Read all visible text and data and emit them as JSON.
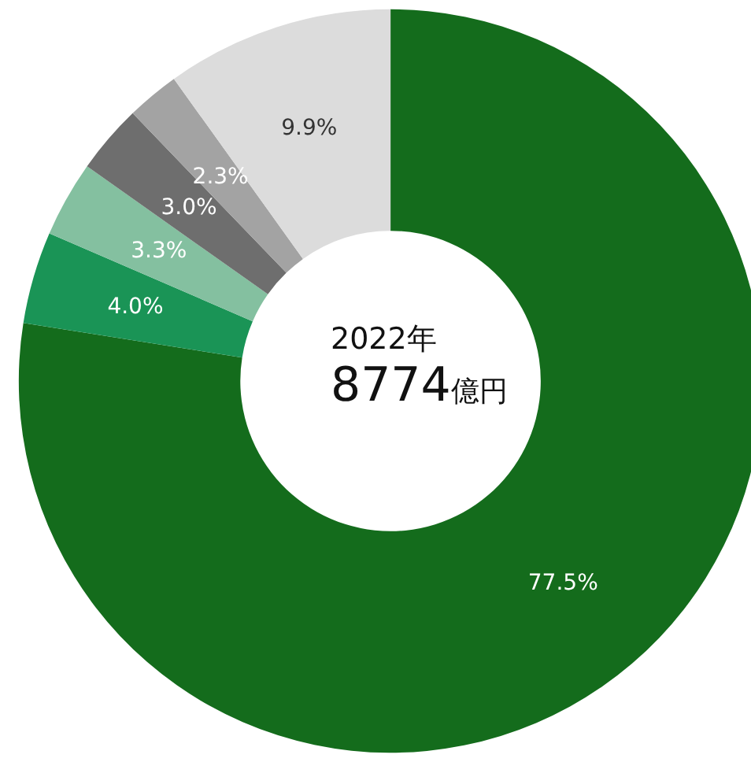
{
  "chart_data": {
    "type": "donut",
    "categories": [
      null,
      null,
      null,
      null,
      null,
      null
    ],
    "values": [
      77.5,
      4.0,
      3.3,
      3.0,
      2.3,
      9.9
    ],
    "value_labels": [
      "77.5%",
      "4.0%",
      "3.3%",
      "3.0%",
      "2.3%",
      "9.9%"
    ],
    "colors": [
      "#146c1c",
      "#1a9456",
      "#84c0a0",
      "#6e6e6e",
      "#a3a3a3",
      "#dcdcdc"
    ],
    "annotations": [
      "2022年",
      "8774億円"
    ]
  }
}
